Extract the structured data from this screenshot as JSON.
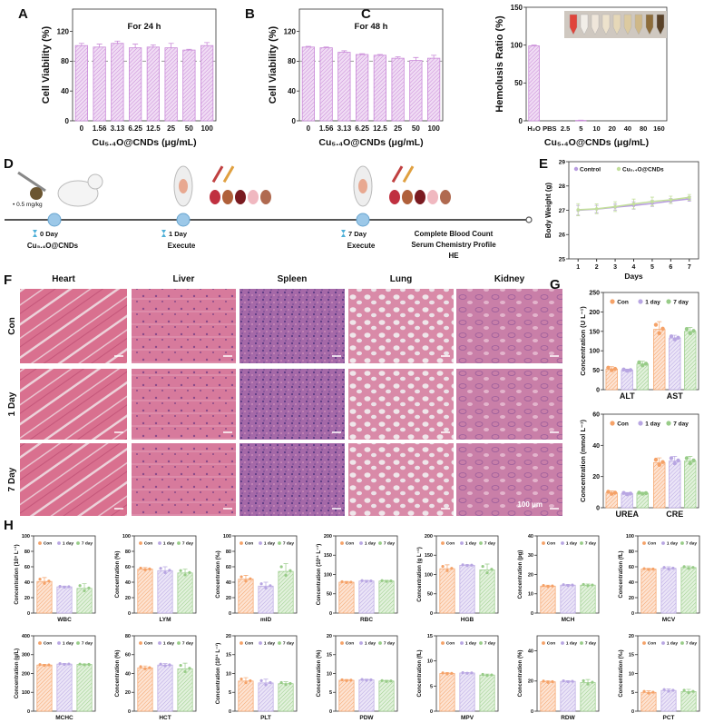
{
  "panels": {
    "A": "A",
    "B": "B",
    "C": "C",
    "D": "D",
    "E": "E",
    "F": "F",
    "G": "G",
    "H": "H"
  },
  "colors": {
    "viability": "#c98ad8",
    "con": "#f5a268",
    "day1": "#b8a6e2",
    "day7": "#98cc88",
    "control_line": "#b79ce0",
    "cnd_line": "#cfe8a8"
  },
  "diagram": {
    "dose": "• 0.5 mg/kg",
    "steps": [
      {
        "day": "0 Day",
        "label": "Cu₅.₄O@CNDs"
      },
      {
        "day": "1 Day",
        "label": "Execute"
      },
      {
        "day": "7 Day",
        "label": "Execute"
      }
    ],
    "analyses": [
      "Complete Blood Count",
      "Serum Chemistry Profile",
      "HE"
    ]
  },
  "histology": {
    "columns": [
      "Heart",
      "Liver",
      "Spleen",
      "Lung",
      "Kidney"
    ],
    "rows": [
      "Con",
      "1 Day",
      "7 Day"
    ],
    "scale_bar": "100 μm"
  },
  "chart_data": [
    {
      "id": "A",
      "type": "bar",
      "title": "For 24 h",
      "xlabel": "Cu₅.₄O@CNDs (μg/mL)",
      "ylabel": "Cell Viability (%)",
      "categories": [
        "0",
        "1.56",
        "3.13",
        "6.25",
        "12.5",
        "25",
        "50",
        "100"
      ],
      "values": [
        101,
        99,
        104,
        98,
        99,
        98,
        95,
        101
      ],
      "errors": [
        3,
        4,
        3,
        5,
        3,
        6,
        1,
        4
      ],
      "ylim": [
        0,
        150
      ],
      "yticks": [
        "0",
        "40",
        "80",
        "120"
      ],
      "ytick_values": [
        0,
        40,
        80,
        120
      ],
      "reference_line": 80
    },
    {
      "id": "B",
      "type": "bar",
      "title": "For 48 h",
      "xlabel": "Cu₅.₄O@CNDs (μg/mL)",
      "ylabel": "Cell Viability (%)",
      "categories": [
        "0",
        "1.56",
        "3.13",
        "6.25",
        "12.5",
        "25",
        "50",
        "100"
      ],
      "values": [
        99,
        98,
        92,
        89,
        88,
        84,
        81,
        84
      ],
      "errors": [
        1,
        1,
        2,
        1,
        1,
        2,
        4,
        4
      ],
      "ylim": [
        0,
        150
      ],
      "yticks": [
        "0",
        "40",
        "80",
        "120"
      ],
      "ytick_values": [
        0,
        40,
        80,
        120
      ],
      "reference_line": 80
    },
    {
      "id": "C",
      "type": "bar",
      "title": "",
      "xlabel": "Cu₅.₄O@CNDs (μg/mL)",
      "ylabel": "Hemolusis Ratio (%)",
      "categories": [
        "H₂O",
        "PBS",
        "2.5",
        "5",
        "10",
        "20",
        "40",
        "80",
        "160"
      ],
      "values": [
        99,
        0,
        0,
        0.5,
        0,
        0,
        0,
        0,
        0
      ],
      "errors": [
        1,
        0,
        0,
        0.3,
        0,
        0,
        0,
        0,
        0
      ],
      "ylim": [
        0,
        150
      ],
      "yticks": [
        "0",
        "50",
        "100",
        "150"
      ],
      "ytick_values": [
        0,
        50,
        100,
        150
      ]
    },
    {
      "id": "E",
      "type": "line",
      "xlabel": "Days",
      "ylabel": "Body Weight (g)",
      "x": [
        1,
        2,
        3,
        4,
        5,
        6,
        7
      ],
      "xticks": [
        "1",
        "2",
        "3",
        "4",
        "5",
        "6",
        "7"
      ],
      "series": [
        {
          "name": "Control",
          "values": [
            27.0,
            27.05,
            27.13,
            27.2,
            27.28,
            27.38,
            27.47
          ],
          "errors": [
            0.2,
            0.15,
            0.12,
            0.15,
            0.12,
            0.1,
            0.1
          ]
        },
        {
          "name": "Cu₅.₄O@CNDs",
          "values": [
            27.02,
            27.06,
            27.15,
            27.26,
            27.36,
            27.43,
            27.53
          ],
          "errors": [
            0.25,
            0.2,
            0.2,
            0.2,
            0.18,
            0.15,
            0.12
          ]
        }
      ],
      "ylim": [
        25,
        29
      ],
      "yticks": [
        "25",
        "26",
        "27",
        "28",
        "29"
      ],
      "ytick_values": [
        25,
        26,
        27,
        28,
        29
      ]
    },
    {
      "id": "G1",
      "type": "grouped_bar",
      "ylabel": "Concentration (U L⁻¹)",
      "categories": [
        "ALT",
        "AST"
      ],
      "series": [
        {
          "name": "Con",
          "values": [
            53,
            155
          ],
          "errors": [
            6,
            20
          ]
        },
        {
          "name": "1 day",
          "values": [
            50,
            133
          ],
          "errors": [
            3,
            7
          ]
        },
        {
          "name": "7 day",
          "values": [
            66,
            150
          ],
          "errors": [
            7,
            10
          ]
        }
      ],
      "ylim": [
        0,
        250
      ],
      "yticks": [
        "0",
        "50",
        "100",
        "150",
        "200",
        "250"
      ],
      "ytick_values": [
        0,
        50,
        100,
        150,
        200,
        250
      ]
    },
    {
      "id": "G2",
      "type": "grouped_bar",
      "ylabel": "Concentration (mmol L⁻¹)",
      "categories": [
        "UREA",
        "CRE"
      ],
      "series": [
        {
          "name": "Con",
          "values": [
            9.5,
            29
          ],
          "errors": [
            1.2,
            3
          ]
        },
        {
          "name": "1 day",
          "values": [
            9,
            30
          ],
          "errors": [
            0.8,
            3
          ]
        },
        {
          "name": "7 day",
          "values": [
            9.3,
            30
          ],
          "errors": [
            0.6,
            3
          ]
        }
      ],
      "ylim": [
        0,
        60
      ],
      "yticks": [
        "0",
        "20",
        "40",
        "60"
      ],
      "ytick_values": [
        0,
        20,
        40,
        60
      ]
    },
    {
      "id": "WBC",
      "type": "grouped_bar",
      "ylabel": "Concentration (10⁹ L⁻¹)",
      "categories": [
        "WBC"
      ],
      "series": [
        {
          "name": "Con",
          "values": [
            41
          ],
          "errors": [
            5
          ]
        },
        {
          "name": "1 day",
          "values": [
            34
          ],
          "errors": [
            1
          ]
        },
        {
          "name": "7 day",
          "values": [
            32
          ],
          "errors": [
            6
          ]
        }
      ],
      "ylim": [
        0,
        100
      ],
      "yticks": [
        "0",
        "20",
        "40",
        "60",
        "80",
        "100"
      ],
      "ytick_values": [
        0,
        20,
        40,
        60,
        80,
        100
      ]
    },
    {
      "id": "LYM",
      "type": "grouped_bar",
      "ylabel": "Concentration (%)",
      "categories": [
        "LYM"
      ],
      "series": [
        {
          "name": "Con",
          "values": [
            57
          ],
          "errors": [
            2
          ]
        },
        {
          "name": "1 day",
          "values": [
            55
          ],
          "errors": [
            5
          ]
        },
        {
          "name": "7 day",
          "values": [
            52
          ],
          "errors": [
            5
          ]
        }
      ],
      "ylim": [
        0,
        100
      ],
      "yticks": [
        "0",
        "20",
        "40",
        "60",
        "80",
        "100"
      ],
      "ytick_values": [
        0,
        20,
        40,
        60,
        80,
        100
      ]
    },
    {
      "id": "mID",
      "type": "grouped_bar",
      "ylabel": "Concentration (‰)",
      "categories": [
        "mID"
      ],
      "series": [
        {
          "name": "Con",
          "values": [
            44
          ],
          "errors": [
            5
          ]
        },
        {
          "name": "1 day",
          "values": [
            35
          ],
          "errors": [
            5
          ]
        },
        {
          "name": "7 day",
          "values": [
            54
          ],
          "errors": [
            10
          ]
        }
      ],
      "ylim": [
        0,
        100
      ],
      "yticks": [
        "0",
        "20",
        "40",
        "60",
        "80",
        "100"
      ],
      "ytick_values": [
        0,
        20,
        40,
        60,
        80,
        100
      ]
    },
    {
      "id": "RBC",
      "type": "grouped_bar",
      "ylabel": "Concentration (10¹¹ L⁻¹)",
      "categories": [
        "RBC"
      ],
      "series": [
        {
          "name": "Con",
          "values": [
            80
          ],
          "errors": [
            2
          ]
        },
        {
          "name": "1 day",
          "values": [
            83
          ],
          "errors": [
            2
          ]
        },
        {
          "name": "7 day",
          "values": [
            83
          ],
          "errors": [
            2
          ]
        }
      ],
      "ylim": [
        0,
        200
      ],
      "yticks": [
        "0",
        "50",
        "100",
        "150",
        "200"
      ],
      "ytick_values": [
        0,
        50,
        100,
        150,
        200
      ]
    },
    {
      "id": "HGB",
      "type": "grouped_bar",
      "ylabel": "Concentration (g L⁻¹)",
      "categories": [
        "HGB"
      ],
      "series": [
        {
          "name": "Con",
          "values": [
            115
          ],
          "errors": [
            10
          ]
        },
        {
          "name": "1 day",
          "values": [
            124
          ],
          "errors": [
            2
          ]
        },
        {
          "name": "7 day",
          "values": [
            112
          ],
          "errors": [
            15
          ]
        }
      ],
      "ylim": [
        0,
        200
      ],
      "yticks": [
        "0",
        "50",
        "100",
        "150",
        "200"
      ],
      "ytick_values": [
        0,
        50,
        100,
        150,
        200
      ]
    },
    {
      "id": "MCH",
      "type": "grouped_bar",
      "ylabel": "Concentration (pg)",
      "categories": [
        "MCH"
      ],
      "series": [
        {
          "name": "Con",
          "values": [
            14
          ],
          "errors": [
            0.5
          ]
        },
        {
          "name": "1 day",
          "values": [
            14.5
          ],
          "errors": [
            0.4
          ]
        },
        {
          "name": "7 day",
          "values": [
            14.5
          ],
          "errors": [
            0.6
          ]
        }
      ],
      "ylim": [
        0,
        40
      ],
      "yticks": [
        "0",
        "10",
        "20",
        "30",
        "40"
      ],
      "ytick_values": [
        0,
        10,
        20,
        30,
        40
      ]
    },
    {
      "id": "MCV",
      "type": "grouped_bar",
      "ylabel": "Concentration (fL)",
      "categories": [
        "MCV"
      ],
      "series": [
        {
          "name": "Con",
          "values": [
            57
          ],
          "errors": [
            1
          ]
        },
        {
          "name": "1 day",
          "values": [
            58
          ],
          "errors": [
            2
          ]
        },
        {
          "name": "7 day",
          "values": [
            59
          ],
          "errors": [
            2
          ]
        }
      ],
      "ylim": [
        0,
        100
      ],
      "yticks": [
        "0",
        "20",
        "40",
        "60",
        "80",
        "100"
      ],
      "ytick_values": [
        0,
        20,
        40,
        60,
        80,
        100
      ]
    },
    {
      "id": "MCHC",
      "type": "grouped_bar",
      "ylabel": "Concentration (g/L)",
      "categories": [
        "MCHC"
      ],
      "series": [
        {
          "name": "Con",
          "values": [
            245
          ],
          "errors": [
            4
          ]
        },
        {
          "name": "1 day",
          "values": [
            250
          ],
          "errors": [
            4
          ]
        },
        {
          "name": "7 day",
          "values": [
            248
          ],
          "errors": [
            3
          ]
        }
      ],
      "ylim": [
        0,
        400
      ],
      "yticks": [
        "0",
        "100",
        "200",
        "300",
        "400"
      ],
      "ytick_values": [
        0,
        100,
        200,
        300,
        400
      ]
    },
    {
      "id": "HCT",
      "type": "grouped_bar",
      "ylabel": "Concentration (%)",
      "categories": [
        "HCT"
      ],
      "series": [
        {
          "name": "Con",
          "values": [
            46
          ],
          "errors": [
            2
          ]
        },
        {
          "name": "1 day",
          "values": [
            49
          ],
          "errors": [
            1.5
          ]
        },
        {
          "name": "7 day",
          "values": [
            45
          ],
          "errors": [
            6
          ]
        }
      ],
      "ylim": [
        0,
        80
      ],
      "yticks": [
        "0",
        "20",
        "40",
        "60",
        "80"
      ],
      "ytick_values": [
        0,
        20,
        40,
        60,
        80
      ]
    },
    {
      "id": "PLT",
      "type": "grouped_bar",
      "ylabel": "Concentration (10¹¹ L⁻¹)",
      "categories": [
        "PLT"
      ],
      "series": [
        {
          "name": "Con",
          "values": [
            8
          ],
          "errors": [
            0.9
          ]
        },
        {
          "name": "1 day",
          "values": [
            7.5
          ],
          "errors": [
            1
          ]
        },
        {
          "name": "7 day",
          "values": [
            7.3
          ],
          "errors": [
            0.5
          ]
        }
      ],
      "ylim": [
        0,
        20
      ],
      "yticks": [
        "0",
        "5",
        "10",
        "15",
        "20"
      ],
      "ytick_values": [
        0,
        5,
        10,
        15,
        20
      ]
    },
    {
      "id": "PDW",
      "type": "grouped_bar",
      "ylabel": "Concentration (%)",
      "categories": [
        "PDW"
      ],
      "series": [
        {
          "name": "Con",
          "values": [
            8.2
          ],
          "errors": [
            0.2
          ]
        },
        {
          "name": "1 day",
          "values": [
            8.3
          ],
          "errors": [
            0.2
          ]
        },
        {
          "name": "7 day",
          "values": [
            8
          ],
          "errors": [
            0.2
          ]
        }
      ],
      "ylim": [
        0,
        20
      ],
      "yticks": [
        "0",
        "5",
        "10",
        "15",
        "20"
      ],
      "ytick_values": [
        0,
        5,
        10,
        15,
        20
      ]
    },
    {
      "id": "MPV",
      "type": "grouped_bar",
      "ylabel": "Concentration (fL)",
      "categories": [
        "MPV"
      ],
      "series": [
        {
          "name": "Con",
          "values": [
            7.5
          ],
          "errors": [
            0.2
          ]
        },
        {
          "name": "1 day",
          "values": [
            7.6
          ],
          "errors": [
            0.1
          ]
        },
        {
          "name": "7 day",
          "values": [
            7.2
          ],
          "errors": [
            0.2
          ]
        }
      ],
      "ylim": [
        0,
        15
      ],
      "yticks": [
        "0",
        "5",
        "10",
        "15"
      ],
      "ytick_values": [
        0,
        5,
        10,
        15
      ]
    },
    {
      "id": "RDW",
      "type": "grouped_bar",
      "ylabel": "Concentration (%)",
      "categories": [
        "RDW"
      ],
      "series": [
        {
          "name": "Con",
          "values": [
            19.5
          ],
          "errors": [
            0.8
          ]
        },
        {
          "name": "1 day",
          "values": [
            19.8
          ],
          "errors": [
            0.5
          ]
        },
        {
          "name": "7 day",
          "values": [
            19
          ],
          "errors": [
            2
          ]
        }
      ],
      "ylim": [
        0,
        50
      ],
      "yticks": [
        "0",
        "20",
        "40"
      ],
      "ytick_values": [
        0,
        20,
        40
      ]
    },
    {
      "id": "PCT",
      "type": "grouped_bar",
      "ylabel": "Concentration (‰)",
      "categories": [
        "PCT"
      ],
      "series": [
        {
          "name": "Con",
          "values": [
            5
          ],
          "errors": [
            0.4
          ]
        },
        {
          "name": "1 day",
          "values": [
            5.5
          ],
          "errors": [
            0.4
          ]
        },
        {
          "name": "7 day",
          "values": [
            5.2
          ],
          "errors": [
            0.6
          ]
        }
      ],
      "ylim": [
        0,
        20
      ],
      "yticks": [
        "0",
        "5",
        "10",
        "15",
        "20"
      ],
      "ytick_values": [
        0,
        5,
        10,
        15,
        20
      ]
    }
  ]
}
